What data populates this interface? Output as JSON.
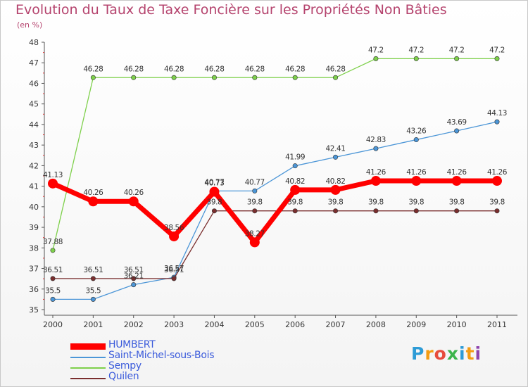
{
  "title": "Evolution du Taux de Taxe Foncière sur les Propriétés Non Bâties",
  "subtitle": "(en %)",
  "brand": "Proxiti",
  "chart_data": {
    "type": "line",
    "title": "Evolution du Taux de Taxe Foncière sur les Propriétés Non Bâties",
    "ylabel": "(en %)",
    "xlabel": "",
    "ylim": [
      35,
      48
    ],
    "yticks": [
      35,
      36,
      37,
      38,
      39,
      40,
      41,
      42,
      43,
      44,
      45,
      46,
      47,
      48
    ],
    "grid": false,
    "legend_position": "bottom-left",
    "categories": [
      "2000",
      "2001",
      "2002",
      "2003",
      "2004",
      "2005",
      "2006",
      "2007",
      "2008",
      "2009",
      "2010",
      "2011"
    ],
    "series": [
      {
        "name": "HUMBERT",
        "color": "#ff0000",
        "values": [
          41.13,
          40.26,
          40.26,
          38.56,
          40.73,
          38.27,
          40.82,
          40.82,
          41.26,
          41.26,
          41.26,
          41.26
        ],
        "labels": [
          "41.13",
          "40.26",
          "40.26",
          "38.56",
          "40.73",
          "38.27",
          "40.82",
          "40.82",
          "41.26",
          "41.26",
          "41.26",
          "41.26"
        ]
      },
      {
        "name": "Saint-Michel-sous-Bois",
        "color": "#4c96d7",
        "values": [
          35.5,
          35.5,
          36.21,
          36.57,
          40.77,
          40.77,
          41.99,
          42.41,
          42.83,
          43.26,
          43.69,
          44.13
        ],
        "labels": [
          "35.5",
          "35.5",
          "36.21",
          "36.57",
          "40.77",
          "40.77",
          "41.99",
          "42.41",
          "42.83",
          "43.26",
          "43.69",
          "44.13"
        ]
      },
      {
        "name": "Sempy",
        "color": "#7ed04b",
        "values": [
          37.88,
          46.28,
          46.28,
          46.28,
          46.28,
          46.28,
          46.28,
          46.28,
          47.2,
          47.2,
          47.2,
          47.2
        ],
        "labels": [
          "37.88",
          "46.28",
          "46.28",
          "46.28",
          "46.28",
          "46.28",
          "46.28",
          "46.28",
          "47.2",
          "47.2",
          "47.2",
          "47.2"
        ]
      },
      {
        "name": "Quilen",
        "color": "#7a2e2e",
        "values": [
          36.51,
          36.51,
          36.51,
          36.51,
          39.8,
          39.8,
          39.8,
          39.8,
          39.8,
          39.8,
          39.8,
          39.8
        ],
        "labels": [
          "36.51",
          "36.51",
          "36.51",
          "36.51",
          "39.8",
          "39.8",
          "39.8",
          "39.8",
          "39.8",
          "39.8",
          "39.8",
          "39.8"
        ]
      }
    ]
  }
}
